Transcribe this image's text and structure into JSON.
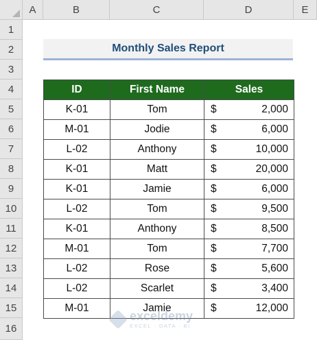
{
  "spreadsheet": {
    "column_headers": [
      "A",
      "B",
      "C",
      "D",
      "E"
    ],
    "row_headers": [
      "1",
      "2",
      "3",
      "4",
      "5",
      "6",
      "7",
      "8",
      "9",
      "10",
      "11",
      "12",
      "13",
      "14",
      "15",
      "16"
    ]
  },
  "report": {
    "title": "Monthly Sales Report",
    "headers": {
      "id": "ID",
      "first_name": "First Name",
      "sales": "Sales"
    },
    "rows": [
      {
        "id": "K-01",
        "first_name": "Tom",
        "currency": "$",
        "sales": "2,000"
      },
      {
        "id": "M-01",
        "first_name": "Jodie",
        "currency": "$",
        "sales": "6,000"
      },
      {
        "id": "L-02",
        "first_name": "Anthony",
        "currency": "$",
        "sales": "10,000"
      },
      {
        "id": "K-01",
        "first_name": "Matt",
        "currency": "$",
        "sales": "20,000"
      },
      {
        "id": "K-01",
        "first_name": "Jamie",
        "currency": "$",
        "sales": "6,000"
      },
      {
        "id": "L-02",
        "first_name": "Tom",
        "currency": "$",
        "sales": "9,500"
      },
      {
        "id": "K-01",
        "first_name": "Anthony",
        "currency": "$",
        "sales": "8,500"
      },
      {
        "id": "M-01",
        "first_name": "Tom",
        "currency": "$",
        "sales": "7,700"
      },
      {
        "id": "L-02",
        "first_name": "Rose",
        "currency": "$",
        "sales": "5,600"
      },
      {
        "id": "L-02",
        "first_name": "Scarlet",
        "currency": "$",
        "sales": "3,400"
      },
      {
        "id": "M-01",
        "first_name": "Jamie",
        "currency": "$",
        "sales": "12,000"
      }
    ]
  },
  "watermark": {
    "name": "exceldemy",
    "tagline": "EXCEL · DATA · BI"
  },
  "colors": {
    "header_green": "#1e6b1e",
    "title_blue": "#1f4e79",
    "title_underline": "#9db3d6"
  }
}
